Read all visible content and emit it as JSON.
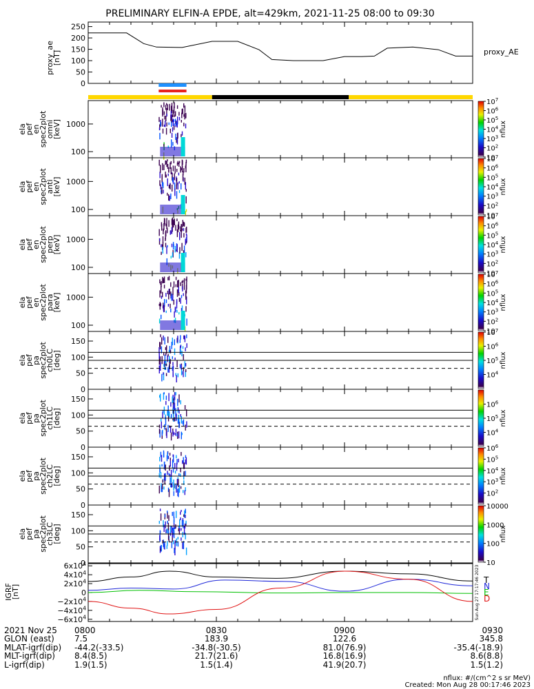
{
  "title": "PRELIMINARY ELFIN-A EPDE, alt=429km, 2021-11-25 08:00 to 09:30",
  "colors": {
    "background": "#ffffff",
    "axes": "#000000",
    "sunlit_bar": "#ffd700",
    "eclipse_bar": "#000000",
    "science_zone_blue": "#1e90ff",
    "science_zone_red": "#e8231d"
  },
  "chart_data": [
    {
      "id": "proxy_ae",
      "type": "line",
      "ylabel": [
        "proxy_ae",
        "[nT]"
      ],
      "legend": "proxy_AE",
      "ylim": [
        0,
        270
      ],
      "yticks": [
        0,
        50,
        100,
        150,
        200,
        250
      ],
      "x": [
        "08:00",
        "08:03",
        "08:09",
        "08:13",
        "08:16",
        "08:22",
        "08:29",
        "08:35",
        "08:40",
        "08:43",
        "08:48",
        "08:55",
        "09:00",
        "09:04",
        "09:07",
        "09:10",
        "09:16",
        "09:22",
        "09:26",
        "09:30"
      ],
      "values": [
        222,
        222,
        222,
        175,
        160,
        158,
        185,
        185,
        148,
        105,
        100,
        100,
        118,
        118,
        120,
        155,
        160,
        148,
        120,
        120
      ]
    },
    {
      "id": "orbit_status_bar",
      "type": "bar",
      "segments": [
        {
          "start": "08:00",
          "end": "08:29",
          "state": "sunlit",
          "color": "#ffd700"
        },
        {
          "start": "08:29",
          "end": "09:01",
          "state": "eclipse",
          "color": "#000000"
        },
        {
          "start": "09:01",
          "end": "09:30",
          "state": "sunlit",
          "color": "#ffd700"
        }
      ],
      "science_zone": {
        "start": "08:16.5",
        "end": "08:23",
        "colors": [
          "#1e90ff",
          "#e8231d"
        ]
      }
    },
    {
      "id": "spec_omni",
      "type": "heatmap",
      "ylabel": [
        "ela",
        "pef",
        "en",
        "spec2plot",
        "omni",
        "[keV]"
      ],
      "yticks": [
        100,
        1000
      ],
      "ylim": [
        60,
        7000
      ],
      "ylog": true,
      "colorbar": {
        "label": "nflux",
        "min": 10,
        "max": 10000000.0,
        "ticks": [
          "10",
          "10^2",
          "10^3",
          "10^4",
          "10^5",
          "10^6",
          "10^7"
        ]
      }
    },
    {
      "id": "spec_anti",
      "type": "heatmap",
      "ylabel": [
        "ela",
        "pef",
        "en",
        "spec2plot",
        "anti",
        "[keV]"
      ],
      "yticks": [
        100,
        1000
      ],
      "ylim": [
        60,
        7000
      ],
      "ylog": true,
      "colorbar": {
        "label": "nflux",
        "min": 10,
        "max": 10000000.0,
        "ticks": [
          "10",
          "10^2",
          "10^3",
          "10^4",
          "10^5",
          "10^6",
          "10^7"
        ]
      }
    },
    {
      "id": "spec_perp",
      "type": "heatmap",
      "ylabel": [
        "ela",
        "pef",
        "en",
        "spec2plot",
        "perp",
        "[keV]"
      ],
      "yticks": [
        100,
        1000
      ],
      "ylim": [
        60,
        7000
      ],
      "ylog": true,
      "colorbar": {
        "label": "nflux",
        "min": 10,
        "max": 10000000.0,
        "ticks": [
          "10",
          "10^2",
          "10^3",
          "10^4",
          "10^5",
          "10^6",
          "10^7"
        ]
      }
    },
    {
      "id": "spec_para",
      "type": "heatmap",
      "ylabel": [
        "ela",
        "pef",
        "en",
        "spec2plot",
        "para",
        "[keV]"
      ],
      "yticks": [
        100,
        1000
      ],
      "ylim": [
        60,
        7000
      ],
      "ylog": true,
      "colorbar": {
        "label": "nflux",
        "min": 10,
        "max": 10000000.0,
        "ticks": [
          "10",
          "10^2",
          "10^3",
          "10^4",
          "10^5",
          "10^6",
          "10^7"
        ]
      }
    },
    {
      "id": "pa_ch0",
      "type": "heatmap",
      "ylabel": [
        "ela",
        "pef",
        "pa",
        "spec2plot",
        "ch0LC",
        "[deg]"
      ],
      "yticks": [
        0,
        50,
        100,
        150
      ],
      "ylim": [
        0,
        180
      ],
      "colorbar": {
        "label": "nflux",
        "min": 1000.0,
        "max": 10000000.0,
        "ticks": [
          "10^4",
          "10^5",
          "10^6",
          "10^7"
        ]
      }
    },
    {
      "id": "pa_ch1",
      "type": "heatmap",
      "ylabel": [
        "ela",
        "pef",
        "pa",
        "spec2plot",
        "ch1LC",
        "[deg]"
      ],
      "yticks": [
        0,
        50,
        100,
        150
      ],
      "ylim": [
        0,
        180
      ],
      "colorbar": {
        "label": "nflux",
        "min": 1000.0,
        "max": 10000000.0,
        "ticks": [
          "10^4",
          "10^5",
          "10^6"
        ]
      }
    },
    {
      "id": "pa_ch2",
      "type": "heatmap",
      "ylabel": [
        "ela",
        "pef",
        "pa",
        "spec2plot",
        "ch2LC",
        "[deg]"
      ],
      "yticks": [
        0,
        50,
        100,
        150
      ],
      "ylim": [
        0,
        180
      ],
      "colorbar": {
        "label": "nflux",
        "min": 10,
        "max": 1000000.0,
        "ticks": [
          "10^2",
          "10^3",
          "10^4",
          "10^5",
          "10^6"
        ]
      }
    },
    {
      "id": "pa_ch3",
      "type": "heatmap",
      "ylabel": [
        "ela",
        "pef",
        "pa",
        "spec2plot",
        "ch3LC",
        "[deg]"
      ],
      "yticks": [
        0,
        50,
        100,
        150
      ],
      "ylim": [
        0,
        180
      ],
      "colorbar": {
        "label": "nflux",
        "min": 10,
        "max": 10000,
        "ticks": [
          "10",
          "100",
          "1000",
          "10000"
        ]
      }
    },
    {
      "id": "igrf",
      "type": "line",
      "ylabel": [
        "IGRF",
        "[nT]"
      ],
      "ylim": [
        -65000,
        65000
      ],
      "yticks": [
        "-6x10^4",
        "-4x10^4",
        "-2x10^4",
        "0",
        "2x10^4",
        "4x10^4",
        "6x10^4"
      ],
      "legend": [
        "T",
        "N",
        "E",
        "D"
      ],
      "series": [
        {
          "name": "T",
          "color": "#000000",
          "x": [
            "08:00",
            "08:10",
            "08:19",
            "08:30",
            "08:44",
            "09:00",
            "09:15",
            "09:30"
          ],
          "values": [
            25000,
            35000,
            48000,
            35000,
            32000,
            48000,
            42000,
            26000
          ]
        },
        {
          "name": "N",
          "color": "#1c25d8",
          "x": [
            "08:00",
            "08:10",
            "08:20",
            "08:32",
            "08:46",
            "09:00",
            "09:15",
            "09:30"
          ],
          "values": [
            5000,
            10000,
            8000,
            28000,
            25000,
            3000,
            30000,
            15000
          ]
        },
        {
          "name": "E",
          "color": "#00c000",
          "x": [
            "08:00",
            "08:12",
            "08:25",
            "08:45",
            "09:00",
            "09:15",
            "09:30"
          ],
          "values": [
            0,
            5000,
            2000,
            -1000,
            0,
            0,
            -2000
          ]
        },
        {
          "name": "D",
          "color": "#e01010",
          "x": [
            "08:00",
            "08:10",
            "08:19",
            "08:30",
            "08:45",
            "09:00",
            "09:15",
            "09:30"
          ],
          "values": [
            -20000,
            -35000,
            -48000,
            -38000,
            10000,
            48000,
            30000,
            -20000
          ]
        }
      ],
      "side_note": "Sun Aug 27 17:17:46 2023"
    }
  ],
  "time_axis": {
    "labels": [
      "2021 Nov 25",
      "GLON (east)",
      "MLAT-igrf(dip)",
      "MLT-igrf(dip)",
      "L-igrf(dip)"
    ],
    "ticks": [
      {
        "time": "0800",
        "glon": "7.5",
        "mlat": "-44.2(-33.5)",
        "mlt": "8.4(8.5)",
        "l": "1.9(1.5)"
      },
      {
        "time": "0830",
        "glon": "183.9",
        "mlat": "-34.8(-30.5)",
        "mlt": "21.7(21.6)",
        "l": "1.5(1.4)"
      },
      {
        "time": "0900",
        "glon": "122.6",
        "mlat": "81.0(76.9)",
        "mlt": "16.8(16.9)",
        "l": "41.9(20.7)"
      },
      {
        "time": "0930",
        "glon": "345.8",
        "mlat": "-35.4(-18.9)",
        "mlt": "8.6(8.8)",
        "l": "1.5(1.2)"
      }
    ]
  },
  "footer": {
    "units": "nflux: #/(cm^2 s sr MeV)",
    "created": "Created: Mon Aug 28 00:17:46 2023"
  }
}
